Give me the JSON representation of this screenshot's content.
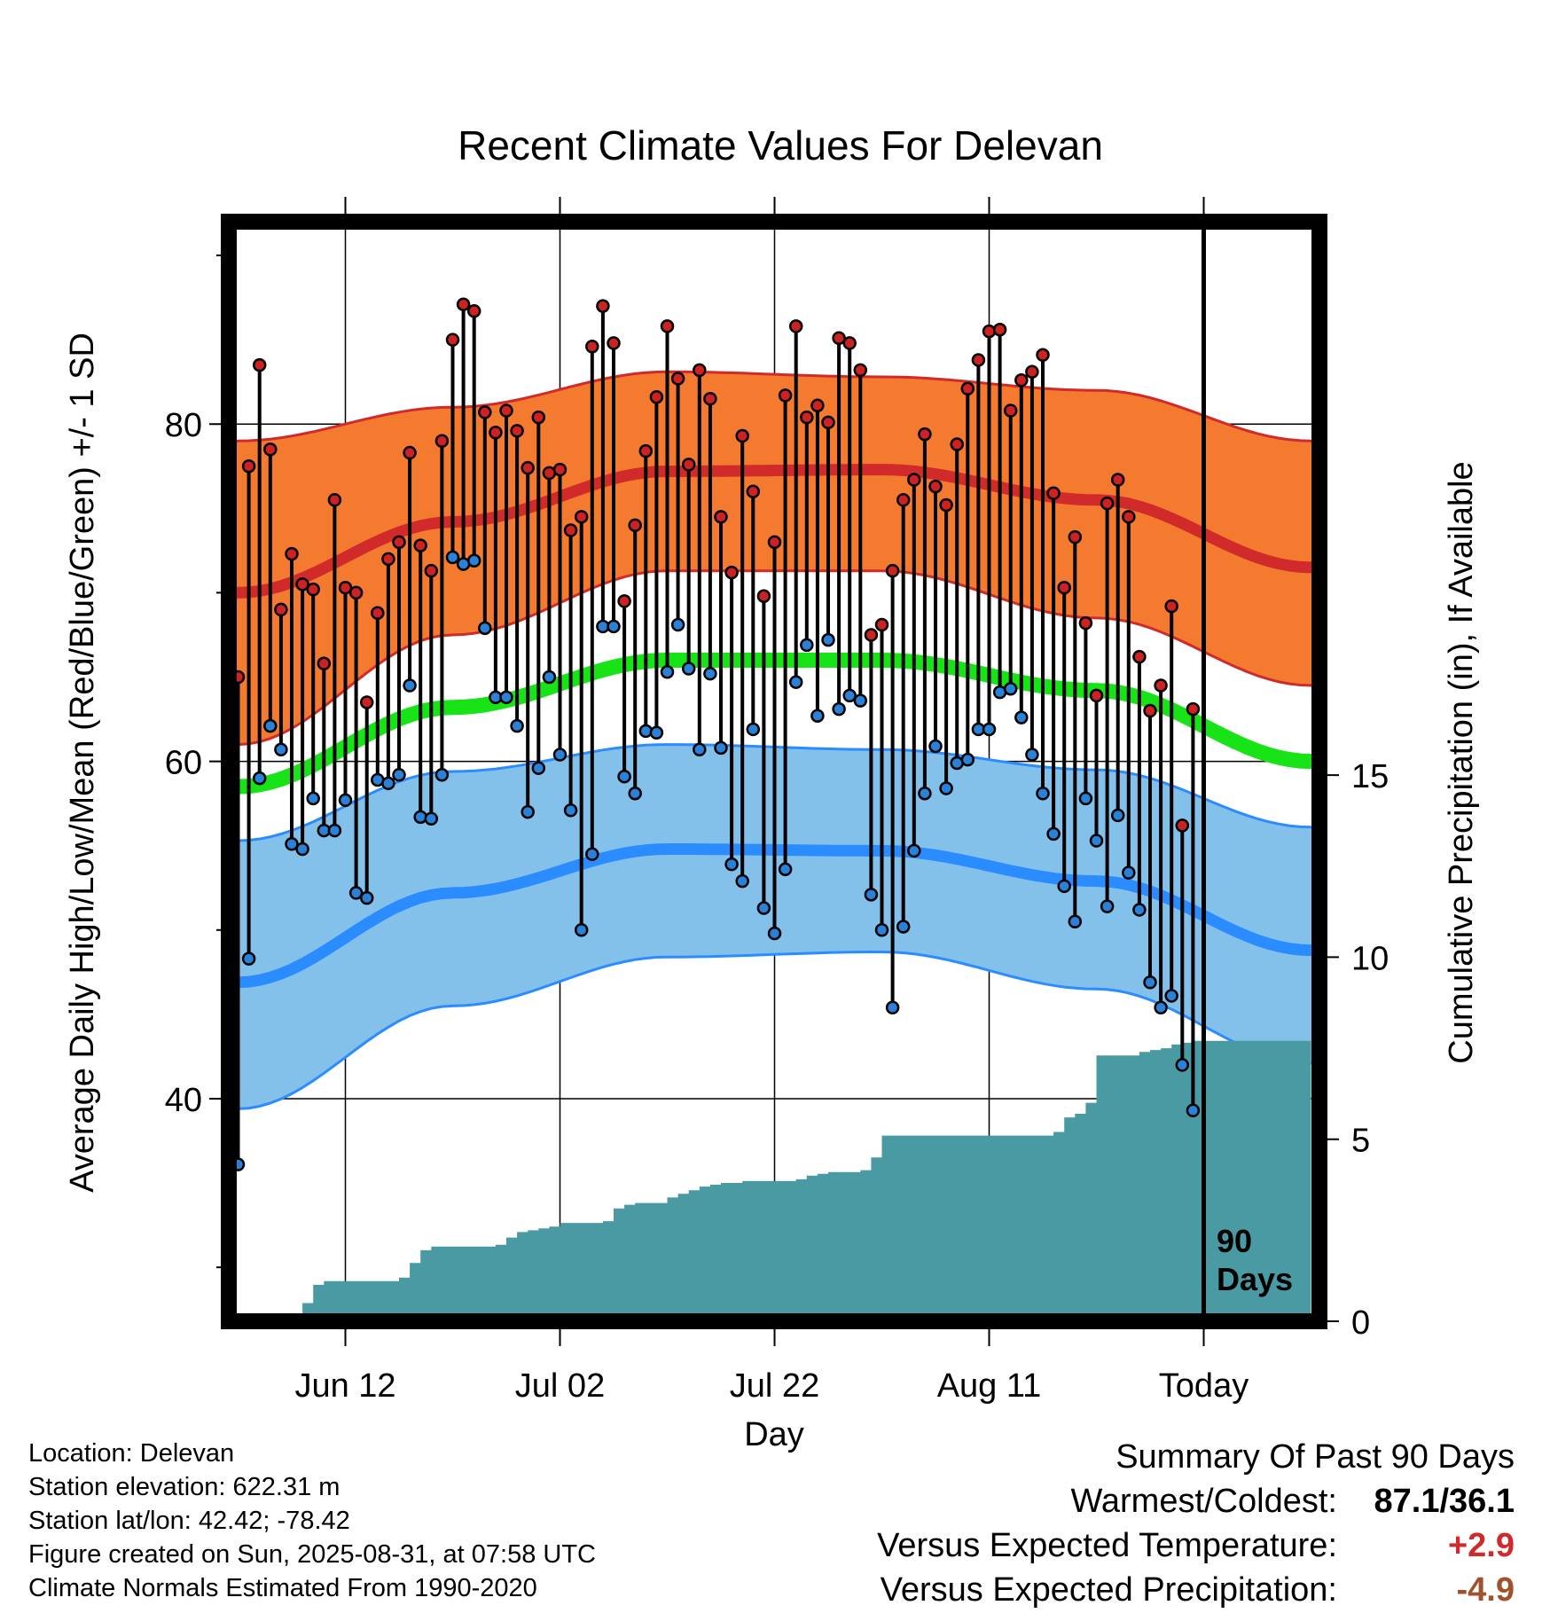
{
  "chart_data": {
    "type": "line",
    "title": "Recent Climate Values For Delevan",
    "xlabel": "Day",
    "ylabel": "Average Daily High/Low/Mean (Red/Blue/Green) +/- 1 SD",
    "y2label": "Cumulative Precipitation (in), If Available",
    "x_range": [
      -5,
      5
    ],
    "x_ticks": [
      {
        "day": 10,
        "label": "Jun 12"
      },
      {
        "day": 30,
        "label": "Jul 02"
      },
      {
        "day": 50,
        "label": "Jul 22"
      },
      {
        "day": 70,
        "label": "Aug 11"
      },
      {
        "day": 90,
        "label": "Today"
      }
    ],
    "xlim": [
      0,
      100
    ],
    "ylim": [
      26.8,
      92
    ],
    "y_ticks": [
      40,
      60,
      80
    ],
    "y_minor_ticks": [
      30,
      50,
      70,
      90
    ],
    "y2lim": [
      0,
      30.2
    ],
    "y2_ticks": [
      0,
      5,
      10,
      15
    ],
    "grid": true,
    "today_day": 90,
    "window_annotation": [
      "90",
      "Days"
    ],
    "colors": {
      "high": "#d12a2a",
      "high_band": "#f47a30",
      "low": "#2b8cff",
      "low_band": "#84c1ea",
      "mean": "#17e317",
      "precip": "#4a9aa3",
      "high_dot": "#cc2222",
      "low_dot": "#2a82d8"
    },
    "normal_high": {
      "days": [
        0,
        20,
        40,
        60,
        80,
        100
      ],
      "mean": [
        70,
        74.2,
        77.2,
        77.3,
        75.5,
        71.5
      ],
      "upper": [
        79,
        81,
        83.1,
        82.8,
        82,
        79
      ],
      "lower": [
        61,
        67.5,
        71.3,
        71.3,
        68.5,
        64.5
      ]
    },
    "normal_low": {
      "days": [
        0,
        20,
        40,
        60,
        80,
        100
      ],
      "mean": [
        46.9,
        52.2,
        54.8,
        54.7,
        52.9,
        48.8
      ],
      "upper": [
        55.3,
        59.4,
        61,
        60.7,
        59.5,
        56.1
      ],
      "lower": [
        39.4,
        45.5,
        48.4,
        48.7,
        46.5,
        42.1
      ]
    },
    "normal_mean": {
      "days": [
        0,
        20,
        40,
        60,
        80,
        100
      ],
      "values": [
        58.5,
        63.2,
        66,
        66,
        64.2,
        60
      ]
    },
    "highs": [
      65,
      77.5,
      83.5,
      78.5,
      69,
      72.3,
      70.5,
      70.2,
      65.8,
      75.5,
      70.3,
      70,
      63.5,
      68.8,
      72,
      73,
      78.3,
      72.8,
      71.3,
      79,
      85,
      87.1,
      86.7,
      80.7,
      79.5,
      80.8,
      79.6,
      77.4,
      80.4,
      77.1,
      77.3,
      73.7,
      74.5,
      84.6,
      87,
      84.8,
      69.5,
      74,
      78.4,
      81.6,
      85.8,
      82.7,
      77.6,
      83.2,
      81.5,
      74.5,
      71.2,
      79.3,
      76,
      69.8,
      73,
      81.7,
      85.8,
      80.4,
      81.1,
      80.1,
      85.1,
      84.8,
      83.2,
      67.5,
      68.1,
      71.3,
      75.5,
      76.7,
      79.4,
      76.3,
      75.2,
      78.8,
      82.1,
      83.8,
      85.5,
      85.6,
      80.8,
      82.6,
      83.1,
      84.1,
      75.9,
      70.3,
      73.3,
      68.2,
      63.9,
      75.3,
      76.7,
      74.5,
      66.2,
      63,
      64.5,
      69.2,
      56.2,
      63.1
    ],
    "lows": [
      36.1,
      48.3,
      59,
      62.1,
      60.7,
      55.1,
      54.8,
      57.8,
      55.9,
      55.9,
      57.7,
      52.2,
      51.9,
      58.9,
      58.7,
      59.2,
      64.5,
      56.7,
      56.6,
      59.2,
      72.1,
      71.7,
      71.9,
      67.9,
      63.8,
      63.8,
      62.1,
      57,
      59.6,
      65,
      60.4,
      57.1,
      50,
      54.5,
      68,
      68,
      59.1,
      58.1,
      61.8,
      61.7,
      65.3,
      68.1,
      65.5,
      60.7,
      65.2,
      60.8,
      53.9,
      52.9,
      61.9,
      51.3,
      49.8,
      53.6,
      64.7,
      66.9,
      62.7,
      67.2,
      63.1,
      63.9,
      63.6,
      52.1,
      50,
      45.4,
      50.2,
      54.7,
      58.1,
      60.9,
      58.4,
      59.9,
      60.1,
      61.9,
      61.9,
      64.1,
      64.3,
      62.6,
      60.4,
      58.1,
      55.7,
      52.6,
      50.5,
      57.8,
      55.3,
      51.4,
      56.8,
      53.4,
      51.2,
      46.9,
      45.4,
      46.1,
      42,
      39.3
    ],
    "precip_cumulative": {
      "days": [
        0,
        3,
        4,
        5,
        6,
        7,
        8,
        15,
        16,
        17,
        18,
        24,
        25,
        26,
        27,
        28,
        29,
        30,
        34,
        35,
        36,
        37,
        40,
        41,
        42,
        43,
        44,
        45,
        47,
        52,
        53,
        54,
        55,
        58,
        59,
        60,
        76,
        77,
        78,
        79,
        80,
        84,
        85,
        86,
        87,
        88,
        89,
        90,
        100
      ],
      "values": [
        0,
        0,
        0.1,
        0.2,
        0.5,
        1,
        1.1,
        1.2,
        1.6,
        1.95,
        2.05,
        2.1,
        2.3,
        2.45,
        2.5,
        2.55,
        2.6,
        2.7,
        2.75,
        3.1,
        3.2,
        3.25,
        3.4,
        3.5,
        3.6,
        3.7,
        3.75,
        3.8,
        3.85,
        3.9,
        4.0,
        4.05,
        4.1,
        4.15,
        4.5,
        5.1,
        5.2,
        5.6,
        5.7,
        6.0,
        7.3,
        7.4,
        7.45,
        7.5,
        7.6,
        7.65,
        7.7,
        7.7,
        7.7
      ]
    }
  },
  "location": {
    "line1": "Location: Delevan",
    "line2": "Station elevation: 622.31 m",
    "line3": "Station lat/lon: 42.42; -78.42",
    "line4": "Figure created on Sun, 2025-08-31, at 07:58 UTC",
    "line5": "Climate Normals Estimated From 1990-2020"
  },
  "summary": {
    "heading": "Summary Of Past 90 Days",
    "warm_cold_label": "Warmest/Coldest:",
    "warm_cold_value": "87.1/36.1",
    "temp_label": "Versus Expected Temperature:",
    "temp_value": "+2.9",
    "temp_color": "#d12a2a",
    "precip_label": "Versus Expected Precipitation:",
    "precip_value": "-4.9",
    "precip_color": "#a0522d"
  }
}
